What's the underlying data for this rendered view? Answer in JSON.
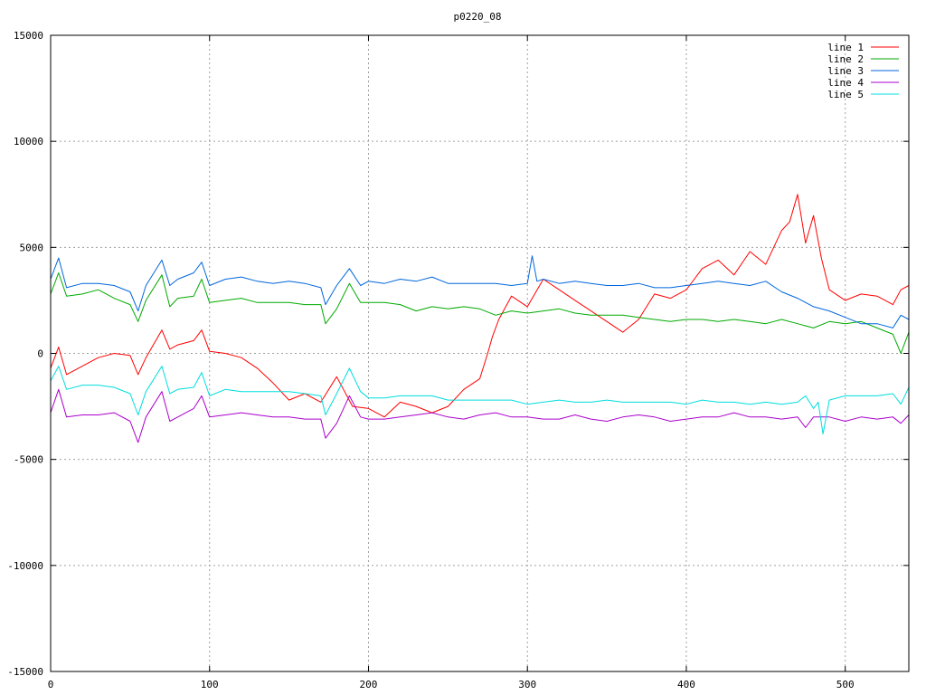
{
  "chart_data": {
    "type": "line",
    "title": "p0220_08",
    "xlabel": "",
    "ylabel": "",
    "xlim": [
      0,
      540
    ],
    "ylim": [
      -15000,
      15000
    ],
    "x_ticks": [
      0,
      100,
      200,
      300,
      400,
      500
    ],
    "y_ticks": [
      -15000,
      -10000,
      -5000,
      0,
      5000,
      10000,
      15000
    ],
    "grid": true,
    "legend_position": "top-right",
    "series": [
      {
        "name": "line 1",
        "color": "#ff0000",
        "x": [
          0,
          5,
          10,
          20,
          30,
          40,
          50,
          55,
          60,
          70,
          75,
          80,
          90,
          95,
          100,
          110,
          120,
          130,
          140,
          150,
          160,
          170,
          180,
          190,
          200,
          210,
          220,
          230,
          240,
          250,
          260,
          270,
          275,
          278,
          282,
          290,
          300,
          310,
          320,
          330,
          340,
          350,
          360,
          370,
          380,
          390,
          400,
          410,
          420,
          430,
          440,
          450,
          460,
          465,
          470,
          475,
          480,
          485,
          490,
          500,
          510,
          520,
          530,
          535,
          540
        ],
        "y": [
          -700,
          300,
          -1000,
          -600,
          -200,
          0,
          -100,
          -1000,
          -200,
          1100,
          200,
          400,
          600,
          1100,
          100,
          0,
          -200,
          -700,
          -1400,
          -2200,
          -1900,
          -2300,
          -1100,
          -2500,
          -2600,
          -3000,
          -2300,
          -2500,
          -2800,
          -2500,
          -1700,
          -1200,
          0,
          800,
          1600,
          2700,
          2200,
          3500,
          3000,
          2500,
          2000,
          1500,
          1000,
          1600,
          2800,
          2600,
          3000,
          4000,
          4400,
          3700,
          4800,
          4200,
          5800,
          6200,
          7500,
          5200,
          6500,
          4500,
          3000,
          2500,
          2800,
          2700,
          2300,
          3000,
          3200
        ]
      },
      {
        "name": "line 2",
        "color": "#00aa00",
        "x": [
          0,
          5,
          10,
          20,
          30,
          40,
          50,
          55,
          60,
          70,
          75,
          80,
          90,
          95,
          100,
          110,
          120,
          130,
          140,
          150,
          160,
          170,
          173,
          180,
          188,
          195,
          200,
          210,
          220,
          230,
          240,
          250,
          260,
          270,
          280,
          290,
          300,
          310,
          320,
          330,
          340,
          350,
          360,
          370,
          380,
          390,
          400,
          410,
          420,
          430,
          440,
          450,
          460,
          470,
          480,
          490,
          500,
          510,
          520,
          530,
          535,
          540
        ],
        "y": [
          2800,
          3800,
          2700,
          2800,
          3000,
          2600,
          2300,
          1500,
          2500,
          3700,
          2200,
          2600,
          2700,
          3500,
          2400,
          2500,
          2600,
          2400,
          2400,
          2400,
          2300,
          2300,
          1400,
          2100,
          3300,
          2400,
          2400,
          2400,
          2300,
          2000,
          2200,
          2100,
          2200,
          2100,
          1800,
          2000,
          1900,
          2000,
          2100,
          1900,
          1800,
          1800,
          1800,
          1700,
          1600,
          1500,
          1600,
          1600,
          1500,
          1600,
          1500,
          1400,
          1600,
          1400,
          1200,
          1500,
          1400,
          1500,
          1200,
          900,
          0,
          1000
        ]
      },
      {
        "name": "line 3",
        "color": "#0066dd",
        "x": [
          0,
          5,
          10,
          20,
          30,
          40,
          50,
          55,
          60,
          70,
          75,
          80,
          90,
          95,
          100,
          110,
          120,
          130,
          140,
          150,
          160,
          170,
          173,
          180,
          188,
          195,
          200,
          210,
          220,
          230,
          240,
          250,
          260,
          270,
          280,
          290,
          300,
          303,
          306,
          310,
          320,
          330,
          340,
          350,
          360,
          370,
          380,
          390,
          400,
          410,
          420,
          430,
          440,
          450,
          460,
          470,
          480,
          490,
          500,
          510,
          520,
          530,
          535,
          540
        ],
        "y": [
          3500,
          4500,
          3100,
          3300,
          3300,
          3200,
          2900,
          2000,
          3200,
          4400,
          3200,
          3500,
          3800,
          4300,
          3200,
          3500,
          3600,
          3400,
          3300,
          3400,
          3300,
          3100,
          2300,
          3200,
          4000,
          3200,
          3400,
          3300,
          3500,
          3400,
          3600,
          3300,
          3300,
          3300,
          3300,
          3200,
          3300,
          4600,
          3400,
          3500,
          3300,
          3400,
          3300,
          3200,
          3200,
          3300,
          3100,
          3100,
          3200,
          3300,
          3400,
          3300,
          3200,
          3400,
          2900,
          2600,
          2200,
          2000,
          1700,
          1400,
          1400,
          1200,
          1800,
          1600
        ]
      },
      {
        "name": "line 4",
        "color": "#aa00cc",
        "x": [
          0,
          5,
          10,
          20,
          30,
          40,
          50,
          55,
          60,
          70,
          75,
          80,
          90,
          95,
          100,
          110,
          120,
          130,
          140,
          150,
          160,
          170,
          173,
          180,
          188,
          195,
          200,
          210,
          220,
          230,
          240,
          250,
          260,
          270,
          280,
          290,
          300,
          310,
          320,
          330,
          340,
          350,
          360,
          370,
          380,
          390,
          400,
          410,
          420,
          430,
          440,
          450,
          460,
          470,
          475,
          480,
          490,
          500,
          510,
          520,
          530,
          535,
          540
        ],
        "y": [
          -2800,
          -1700,
          -3000,
          -2900,
          -2900,
          -2800,
          -3200,
          -4200,
          -3000,
          -1800,
          -3200,
          -3000,
          -2600,
          -2000,
          -3000,
          -2900,
          -2800,
          -2900,
          -3000,
          -3000,
          -3100,
          -3100,
          -4000,
          -3300,
          -2000,
          -3000,
          -3100,
          -3100,
          -3000,
          -2900,
          -2800,
          -3000,
          -3100,
          -2900,
          -2800,
          -3000,
          -3000,
          -3100,
          -3100,
          -2900,
          -3100,
          -3200,
          -3000,
          -2900,
          -3000,
          -3200,
          -3100,
          -3000,
          -3000,
          -2800,
          -3000,
          -3000,
          -3100,
          -3000,
          -3500,
          -3000,
          -3000,
          -3200,
          -3000,
          -3100,
          -3000,
          -3300,
          -2900
        ]
      },
      {
        "name": "line 5",
        "color": "#00dddd",
        "x": [
          0,
          5,
          10,
          20,
          30,
          40,
          50,
          55,
          60,
          70,
          75,
          80,
          90,
          95,
          100,
          110,
          120,
          130,
          140,
          150,
          160,
          170,
          173,
          180,
          188,
          195,
          200,
          210,
          220,
          230,
          240,
          250,
          260,
          270,
          280,
          290,
          300,
          310,
          320,
          330,
          340,
          350,
          360,
          370,
          380,
          390,
          400,
          410,
          420,
          430,
          440,
          450,
          460,
          470,
          475,
          480,
          483,
          486,
          490,
          500,
          510,
          520,
          530,
          535,
          540
        ],
        "y": [
          -1300,
          -600,
          -1700,
          -1500,
          -1500,
          -1600,
          -1900,
          -2900,
          -1800,
          -600,
          -1900,
          -1700,
          -1600,
          -900,
          -2000,
          -1700,
          -1800,
          -1800,
          -1800,
          -1800,
          -1900,
          -2000,
          -2900,
          -1900,
          -700,
          -1800,
          -2100,
          -2100,
          -2000,
          -2000,
          -2000,
          -2200,
          -2200,
          -2200,
          -2200,
          -2200,
          -2400,
          -2300,
          -2200,
          -2300,
          -2300,
          -2200,
          -2300,
          -2300,
          -2300,
          -2300,
          -2400,
          -2200,
          -2300,
          -2300,
          -2400,
          -2300,
          -2400,
          -2300,
          -2000,
          -2600,
          -2300,
          -3800,
          -2200,
          -2000,
          -2000,
          -2000,
          -1900,
          -2400,
          -1600
        ]
      }
    ]
  }
}
